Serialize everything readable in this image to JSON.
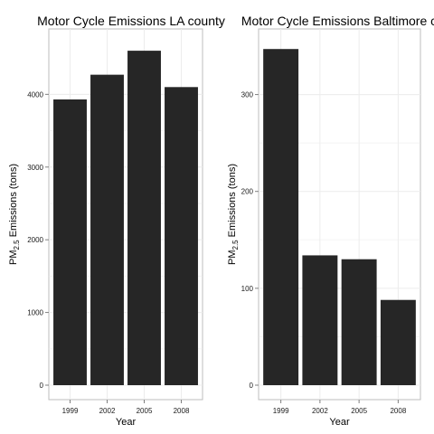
{
  "chart_data": [
    {
      "type": "bar",
      "title": "Motor Cycle Emissions LA county",
      "xlabel": "Year",
      "ylabel": {
        "prefix": "PM",
        "subscript": "2.5",
        "suffix": " Emissions (tons)"
      },
      "categories": [
        "1999",
        "2002",
        "2005",
        "2008"
      ],
      "values": [
        3930,
        4270,
        4600,
        4100
      ],
      "ylim": [
        0,
        4850
      ],
      "yticks": [
        0,
        1000,
        2000,
        3000,
        4000
      ],
      "bar_color": "#262626",
      "grid": true
    },
    {
      "type": "bar",
      "title": "Motor Cycle Emissions Baltimore city",
      "xlabel": "Year",
      "ylabel": {
        "prefix": "PM",
        "subscript": "2.5",
        "suffix": " Emissions (tons)"
      },
      "categories": [
        "1999",
        "2002",
        "2005",
        "2008"
      ],
      "values": [
        347,
        134,
        130,
        88
      ],
      "ylim": [
        0,
        364
      ],
      "yticks": [
        0,
        100,
        200,
        300
      ],
      "bar_color": "#262626",
      "grid": true
    }
  ]
}
